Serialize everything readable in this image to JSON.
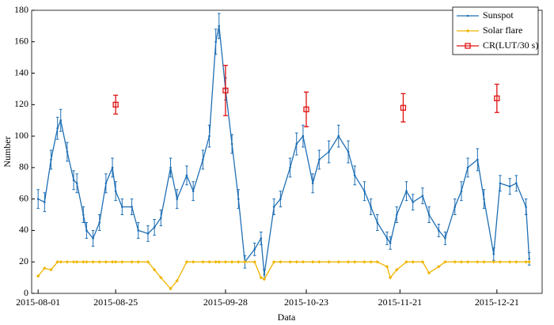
{
  "chart_data": {
    "type": "line",
    "x_label": "Data",
    "y_label": "Number",
    "xlim": [
      "2015-07-30",
      "2016-01-04"
    ],
    "xticks": [
      "2015-08-01",
      "2015-08-25",
      "2015-09-28",
      "2015-10-23",
      "2015-11-21",
      "2015-12-21"
    ],
    "ylim": [
      0,
      180
    ],
    "yticks": [
      0,
      20,
      40,
      60,
      80,
      100,
      120,
      140,
      160,
      180
    ],
    "legend": "upper right",
    "series": [
      {
        "name": "Sunspot",
        "color": "#1f6fb4",
        "marker": "dot",
        "x": [
          "2015-08-01",
          "2015-08-03",
          "2015-08-05",
          "2015-08-07",
          "2015-08-08",
          "2015-08-10",
          "2015-08-12",
          "2015-08-13",
          "2015-08-15",
          "2015-08-16",
          "2015-08-18",
          "2015-08-20",
          "2015-08-22",
          "2015-08-24",
          "2015-08-25",
          "2015-08-27",
          "2015-08-30",
          "2015-09-01",
          "2015-09-04",
          "2015-09-06",
          "2015-09-08",
          "2015-09-11",
          "2015-09-13",
          "2015-09-16",
          "2015-09-18",
          "2015-09-21",
          "2015-09-23",
          "2015-09-25",
          "2015-09-26",
          "2015-09-28",
          "2015-09-30",
          "2015-10-02",
          "2015-10-04",
          "2015-10-07",
          "2015-10-09",
          "2015-10-10",
          "2015-10-13",
          "2015-10-15",
          "2015-10-18",
          "2015-10-20",
          "2015-10-22",
          "2015-10-25",
          "2015-10-27",
          "2015-10-30",
          "2015-11-02",
          "2015-11-05",
          "2015-11-07",
          "2015-11-10",
          "2015-11-12",
          "2015-11-14",
          "2015-11-17",
          "2015-11-18",
          "2015-11-20",
          "2015-11-23",
          "2015-11-25",
          "2015-11-28",
          "2015-11-30",
          "2015-12-03",
          "2015-12-05",
          "2015-12-08",
          "2015-12-10",
          "2015-12-12",
          "2015-12-15",
          "2015-12-17",
          "2015-12-20",
          "2015-12-22",
          "2015-12-25",
          "2015-12-27",
          "2015-12-30",
          "2015-12-31"
        ],
        "values": [
          60,
          58,
          85,
          105,
          110,
          90,
          72,
          70,
          50,
          40,
          35,
          45,
          70,
          80,
          65,
          55,
          55,
          40,
          38,
          42,
          48,
          80,
          60,
          75,
          65,
          85,
          100,
          160,
          170,
          130,
          95,
          60,
          20,
          28,
          35,
          12,
          55,
          60,
          80,
          95,
          100,
          70,
          85,
          90,
          100,
          90,
          75,
          65,
          55,
          45,
          35,
          32,
          50,
          65,
          58,
          62,
          50,
          40,
          35,
          55,
          65,
          80,
          85,
          60,
          25,
          70,
          68,
          70,
          55,
          22
        ],
        "errors": [
          6,
          6,
          6,
          7,
          7,
          6,
          6,
          6,
          5,
          5,
          5,
          5,
          6,
          6,
          6,
          5,
          5,
          5,
          5,
          5,
          5,
          6,
          6,
          6,
          6,
          6,
          7,
          8,
          8,
          7,
          6,
          6,
          4,
          4,
          4,
          3,
          5,
          5,
          6,
          7,
          7,
          6,
          6,
          7,
          7,
          7,
          6,
          6,
          5,
          5,
          4,
          4,
          5,
          6,
          5,
          5,
          5,
          4,
          4,
          5,
          6,
          6,
          7,
          6,
          4,
          5,
          5,
          5,
          5,
          4
        ]
      },
      {
        "name": "Solar flare",
        "color": "#f0b400",
        "marker": "diamond",
        "x": [
          "2015-08-01",
          "2015-08-03",
          "2015-08-05",
          "2015-08-07",
          "2015-08-08",
          "2015-08-10",
          "2015-08-12",
          "2015-08-13",
          "2015-08-15",
          "2015-08-16",
          "2015-08-18",
          "2015-08-20",
          "2015-08-22",
          "2015-08-24",
          "2015-08-25",
          "2015-08-27",
          "2015-08-30",
          "2015-09-01",
          "2015-09-04",
          "2015-09-06",
          "2015-09-08",
          "2015-09-11",
          "2015-09-13",
          "2015-09-16",
          "2015-09-18",
          "2015-09-21",
          "2015-09-23",
          "2015-09-25",
          "2015-09-26",
          "2015-09-28",
          "2015-09-30",
          "2015-10-02",
          "2015-10-04",
          "2015-10-07",
          "2015-10-09",
          "2015-10-10",
          "2015-10-13",
          "2015-10-15",
          "2015-10-18",
          "2015-10-20",
          "2015-10-22",
          "2015-10-25",
          "2015-10-27",
          "2015-10-30",
          "2015-11-02",
          "2015-11-05",
          "2015-11-07",
          "2015-11-10",
          "2015-11-12",
          "2015-11-14",
          "2015-11-17",
          "2015-11-18",
          "2015-11-20",
          "2015-11-23",
          "2015-11-25",
          "2015-11-28",
          "2015-11-30",
          "2015-12-03",
          "2015-12-05",
          "2015-12-08",
          "2015-12-10",
          "2015-12-12",
          "2015-12-15",
          "2015-12-17",
          "2015-12-20",
          "2015-12-22",
          "2015-12-25",
          "2015-12-27",
          "2015-12-30",
          "2015-12-31"
        ],
        "values": [
          11,
          16,
          15,
          20,
          20,
          20,
          20,
          20,
          20,
          20,
          20,
          20,
          20,
          20,
          20,
          20,
          20,
          20,
          20,
          15,
          10,
          3,
          8,
          20,
          20,
          20,
          20,
          20,
          20,
          20,
          20,
          20,
          20,
          20,
          10,
          9,
          20,
          20,
          20,
          20,
          20,
          20,
          20,
          20,
          20,
          20,
          20,
          20,
          20,
          20,
          17,
          10,
          15,
          20,
          20,
          20,
          13,
          17,
          20,
          20,
          20,
          20,
          20,
          20,
          20,
          20,
          20,
          20,
          20,
          20
        ]
      },
      {
        "name": "CR(LUT/30 s)",
        "color": "#e01010",
        "marker": "square",
        "x": [
          "2015-08-25",
          "2015-09-28",
          "2015-10-23",
          "2015-11-22",
          "2015-12-21"
        ],
        "values": [
          120,
          129,
          117,
          118,
          124
        ],
        "errors": [
          6,
          16,
          11,
          9,
          9
        ]
      }
    ]
  }
}
